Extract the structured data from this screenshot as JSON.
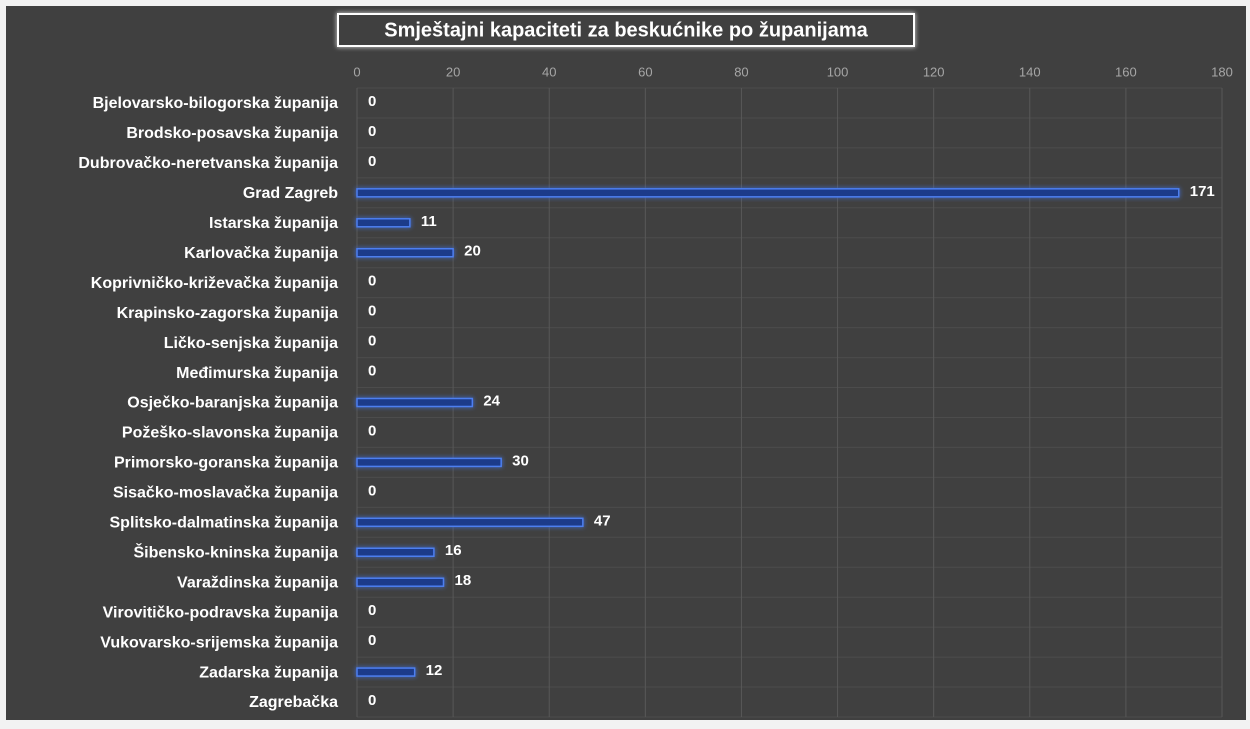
{
  "chart_data": {
    "type": "bar",
    "orientation": "horizontal",
    "title": "Smještajni kapaciteti za beskućnike po županijama",
    "categories": [
      "Bjelovarsko-bilogorska županija",
      "Brodsko-posavska županija",
      "Dubrovačko-neretvanska županija",
      "Grad Zagreb",
      "Istarska županija",
      "Karlovačka županija",
      "Koprivničko-križevačka županija",
      "Krapinsko-zagorska županija",
      "Ličko-senjska županija",
      "Međimurska županija",
      "Osječko-baranjska županija",
      "Požeško-slavonska županija",
      "Primorsko-goranska županija",
      "Sisačko-moslavačka županija",
      "Splitsko-dalmatinska županija",
      "Šibensko-kninska županija",
      "Varaždinska županija",
      "Virovitičko-podravska županija",
      "Vukovarsko-srijemska županija",
      "Zadarska županija",
      "Zagrebačka"
    ],
    "values": [
      0,
      0,
      0,
      171,
      11,
      20,
      0,
      0,
      0,
      0,
      24,
      0,
      30,
      0,
      47,
      16,
      18,
      0,
      0,
      12,
      0
    ],
    "color": "#1c3a8a",
    "edge_color": "#4d7ff0",
    "xlim": [
      0,
      180
    ],
    "xticks": [
      0,
      20,
      40,
      60,
      80,
      100,
      120,
      140,
      160,
      180
    ],
    "grid": true
  }
}
